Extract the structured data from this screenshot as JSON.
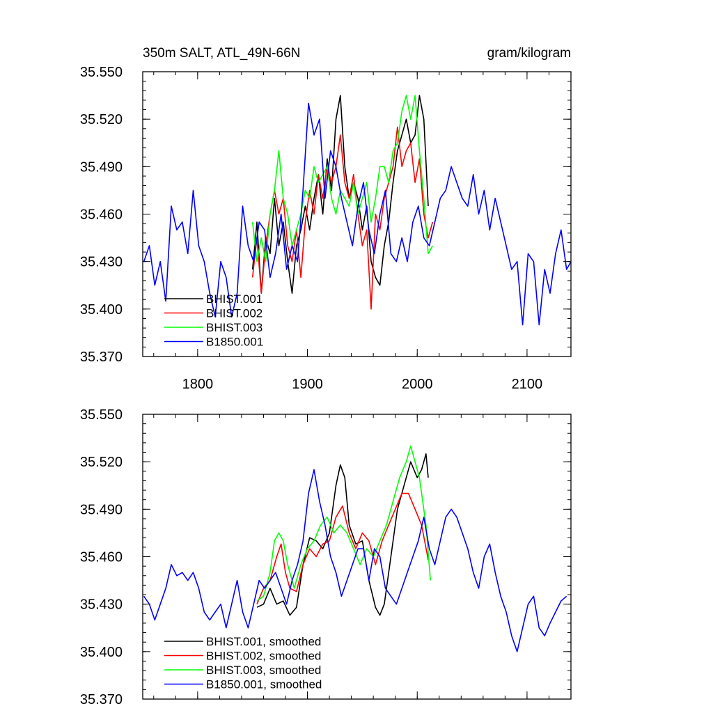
{
  "chart_data": [
    {
      "type": "line",
      "title": "350m SALT, ATL_49N-66N",
      "units": "gram/kilogram",
      "xlim": [
        1750,
        2140
      ],
      "ylim": [
        35.37,
        35.55
      ],
      "x_ticks": [
        1800,
        1900,
        2000,
        2100
      ],
      "x_tick_labels": [
        "1800",
        "1900",
        "2000",
        "2100"
      ],
      "y_ticks": [
        35.37,
        35.4,
        35.43,
        35.46,
        35.49,
        35.52,
        35.55
      ],
      "y_tick_labels": [
        "35.370",
        "35.400",
        "35.430",
        "35.460",
        "35.490",
        "35.520",
        "35.550"
      ],
      "legend_position": "bottom-left",
      "series": [
        {
          "name": "BHIST.001",
          "color": "#000000",
          "x": [
            1850,
            1854,
            1858,
            1862,
            1866,
            1870,
            1874,
            1878,
            1882,
            1886,
            1890,
            1894,
            1898,
            1902,
            1906,
            1910,
            1914,
            1918,
            1922,
            1926,
            1930,
            1934,
            1938,
            1942,
            1946,
            1950,
            1954,
            1958,
            1962,
            1966,
            1970,
            1974,
            1978,
            1982,
            1986,
            1990,
            1994,
            1998,
            2002,
            2006,
            2010
          ],
          "values": [
            35.425,
            35.455,
            35.41,
            35.445,
            35.435,
            35.47,
            35.44,
            35.455,
            35.43,
            35.41,
            35.44,
            35.45,
            35.465,
            35.45,
            35.47,
            35.485,
            35.46,
            35.495,
            35.475,
            35.52,
            35.535,
            35.49,
            35.47,
            35.48,
            35.47,
            35.45,
            35.465,
            35.43,
            35.42,
            35.415,
            35.44,
            35.455,
            35.48,
            35.5,
            35.51,
            35.52,
            35.505,
            35.51,
            35.535,
            35.52,
            35.465
          ]
        },
        {
          "name": "BHIST.002",
          "color": "#ff0000",
          "x": [
            1850,
            1854,
            1858,
            1862,
            1866,
            1870,
            1874,
            1878,
            1882,
            1886,
            1890,
            1894,
            1898,
            1902,
            1906,
            1910,
            1914,
            1918,
            1922,
            1926,
            1930,
            1934,
            1938,
            1942,
            1946,
            1950,
            1954,
            1958,
            1962,
            1966,
            1970,
            1974,
            1978,
            1982,
            1986,
            1990,
            1994,
            1998,
            2002,
            2006,
            2010,
            2014
          ],
          "values": [
            35.42,
            35.445,
            35.41,
            35.44,
            35.46,
            35.475,
            35.46,
            35.47,
            35.44,
            35.43,
            35.45,
            35.42,
            35.455,
            35.475,
            35.46,
            35.485,
            35.47,
            35.49,
            35.48,
            35.49,
            35.51,
            35.48,
            35.47,
            35.485,
            35.46,
            35.44,
            35.45,
            35.4,
            35.46,
            35.45,
            35.47,
            35.48,
            35.49,
            35.515,
            35.49,
            35.5,
            35.505,
            35.48,
            35.495,
            35.46,
            35.445,
            35.455
          ]
        },
        {
          "name": "BHIST.003",
          "color": "#00ff00",
          "x": [
            1850,
            1854,
            1858,
            1862,
            1866,
            1870,
            1874,
            1878,
            1882,
            1886,
            1890,
            1894,
            1898,
            1902,
            1906,
            1910,
            1914,
            1918,
            1922,
            1926,
            1930,
            1934,
            1938,
            1942,
            1946,
            1950,
            1954,
            1958,
            1962,
            1966,
            1970,
            1974,
            1978,
            1982,
            1986,
            1990,
            1994,
            1998,
            2002,
            2006,
            2010,
            2014
          ],
          "values": [
            35.455,
            35.43,
            35.445,
            35.43,
            35.46,
            35.475,
            35.5,
            35.47,
            35.46,
            35.44,
            35.45,
            35.46,
            35.475,
            35.47,
            35.49,
            35.48,
            35.485,
            35.49,
            35.47,
            35.46,
            35.475,
            35.47,
            35.465,
            35.48,
            35.46,
            35.47,
            35.48,
            35.455,
            35.47,
            35.49,
            35.49,
            35.48,
            35.5,
            35.505,
            35.525,
            35.535,
            35.52,
            35.535,
            35.5,
            35.47,
            35.435,
            35.44
          ]
        },
        {
          "name": "B1850.001",
          "color": "#0000ff",
          "x": [
            1751,
            1756,
            1761,
            1766,
            1771,
            1776,
            1781,
            1786,
            1791,
            1796,
            1801,
            1806,
            1811,
            1816,
            1821,
            1826,
            1831,
            1836,
            1841,
            1846,
            1851,
            1856,
            1861,
            1866,
            1871,
            1876,
            1881,
            1886,
            1891,
            1896,
            1901,
            1906,
            1911,
            1916,
            1921,
            1926,
            1931,
            1936,
            1941,
            1946,
            1951,
            1956,
            1961,
            1966,
            1971,
            1976,
            1981,
            1986,
            1991,
            1996,
            2001,
            2006,
            2011,
            2016,
            2021,
            2026,
            2031,
            2036,
            2041,
            2046,
            2051,
            2056,
            2061,
            2066,
            2071,
            2076,
            2081,
            2086,
            2091,
            2096,
            2101,
            2106,
            2111,
            2116,
            2121,
            2126,
            2131,
            2136,
            2140
          ],
          "values": [
            35.43,
            35.44,
            35.415,
            35.43,
            35.405,
            35.465,
            35.45,
            35.455,
            35.435,
            35.475,
            35.44,
            35.43,
            35.41,
            35.395,
            35.43,
            35.42,
            35.395,
            35.41,
            35.465,
            35.44,
            35.43,
            35.455,
            35.45,
            35.42,
            35.435,
            35.46,
            35.425,
            35.44,
            35.43,
            35.475,
            35.53,
            35.51,
            35.52,
            35.47,
            35.5,
            35.49,
            35.47,
            35.455,
            35.44,
            35.465,
            35.48,
            35.45,
            35.435,
            35.46,
            35.475,
            35.435,
            35.43,
            35.445,
            35.43,
            35.455,
            35.465,
            35.445,
            35.44,
            35.455,
            35.47,
            35.475,
            35.49,
            35.48,
            35.47,
            35.465,
            35.485,
            35.46,
            35.475,
            35.45,
            35.47,
            35.455,
            35.44,
            35.425,
            35.43,
            35.39,
            35.435,
            35.43,
            35.39,
            35.425,
            35.41,
            35.435,
            35.45,
            35.425,
            35.43
          ]
        }
      ]
    },
    {
      "type": "line",
      "xlim": [
        1750,
        2140
      ],
      "ylim": [
        35.37,
        35.55
      ],
      "x_ticks": [
        1800,
        1900,
        2000,
        2100
      ],
      "y_ticks": [
        35.37,
        35.4,
        35.43,
        35.46,
        35.49,
        35.52,
        35.55
      ],
      "y_tick_labels": [
        "35.370",
        "35.400",
        "35.430",
        "35.460",
        "35.490",
        "35.520",
        "35.550"
      ],
      "legend_position": "bottom-left",
      "series": [
        {
          "name": "BHIST.001, smoothed",
          "color": "#000000",
          "x": [
            1854,
            1860,
            1866,
            1872,
            1878,
            1884,
            1890,
            1896,
            1902,
            1908,
            1914,
            1920,
            1926,
            1930,
            1934,
            1938,
            1944,
            1950,
            1956,
            1962,
            1966,
            1970,
            1976,
            1982,
            1988,
            1994,
            2000,
            2004,
            2008,
            2010
          ],
          "values": [
            35.428,
            35.43,
            35.44,
            35.43,
            35.432,
            35.423,
            35.428,
            35.455,
            35.472,
            35.47,
            35.465,
            35.475,
            35.505,
            35.518,
            35.51,
            35.48,
            35.468,
            35.47,
            35.445,
            35.428,
            35.423,
            35.43,
            35.46,
            35.49,
            35.505,
            35.52,
            35.51,
            35.515,
            35.525,
            35.51
          ]
        },
        {
          "name": "BHIST.002, smoothed",
          "color": "#ff0000",
          "x": [
            1854,
            1860,
            1866,
            1872,
            1876,
            1880,
            1884,
            1890,
            1896,
            1902,
            1908,
            1914,
            1920,
            1926,
            1932,
            1938,
            1944,
            1950,
            1956,
            1962,
            1968,
            1974,
            1980,
            1986,
            1992,
            1998,
            2004,
            2010
          ],
          "values": [
            35.43,
            35.44,
            35.445,
            35.46,
            35.468,
            35.45,
            35.44,
            35.438,
            35.455,
            35.465,
            35.46,
            35.468,
            35.47,
            35.485,
            35.492,
            35.475,
            35.465,
            35.475,
            35.47,
            35.455,
            35.47,
            35.48,
            35.49,
            35.5,
            35.5,
            35.49,
            35.48,
            35.458
          ]
        },
        {
          "name": "BHIST.003, smoothed",
          "color": "#00ff00",
          "x": [
            1854,
            1860,
            1866,
            1870,
            1874,
            1878,
            1882,
            1888,
            1894,
            1900,
            1906,
            1912,
            1918,
            1924,
            1930,
            1936,
            1942,
            1948,
            1954,
            1960,
            1966,
            1972,
            1978,
            1984,
            1990,
            1994,
            1998,
            2002,
            2008,
            2012
          ],
          "values": [
            35.432,
            35.435,
            35.45,
            35.47,
            35.475,
            35.47,
            35.455,
            35.44,
            35.455,
            35.465,
            35.47,
            35.48,
            35.485,
            35.475,
            35.48,
            35.475,
            35.465,
            35.455,
            35.465,
            35.46,
            35.47,
            35.48,
            35.495,
            35.51,
            35.52,
            35.53,
            35.52,
            35.51,
            35.48,
            35.445
          ]
        },
        {
          "name": "B1850.001, smoothed",
          "color": "#0000ff",
          "x": [
            1751,
            1756,
            1761,
            1766,
            1771,
            1776,
            1781,
            1786,
            1791,
            1796,
            1801,
            1806,
            1811,
            1816,
            1821,
            1826,
            1831,
            1836,
            1841,
            1846,
            1851,
            1856,
            1861,
            1866,
            1871,
            1876,
            1881,
            1886,
            1891,
            1896,
            1901,
            1906,
            1911,
            1916,
            1921,
            1926,
            1931,
            1936,
            1941,
            1946,
            1951,
            1956,
            1961,
            1966,
            1971,
            1976,
            1981,
            1986,
            1991,
            1996,
            2001,
            2006,
            2011,
            2016,
            2021,
            2026,
            2031,
            2036,
            2041,
            2046,
            2051,
            2056,
            2061,
            2066,
            2071,
            2076,
            2081,
            2086,
            2091,
            2096,
            2101,
            2106,
            2111,
            2116,
            2121,
            2126,
            2131,
            2136
          ],
          "values": [
            35.435,
            35.43,
            35.42,
            35.43,
            35.44,
            35.455,
            35.448,
            35.45,
            35.445,
            35.45,
            35.44,
            35.425,
            35.42,
            35.425,
            35.43,
            35.415,
            35.43,
            35.445,
            35.425,
            35.415,
            35.43,
            35.445,
            35.44,
            35.445,
            35.45,
            35.44,
            35.43,
            35.445,
            35.455,
            35.47,
            35.5,
            35.515,
            35.495,
            35.48,
            35.46,
            35.45,
            35.435,
            35.445,
            35.455,
            35.465,
            35.465,
            35.445,
            35.465,
            35.46,
            35.44,
            35.435,
            35.43,
            35.44,
            35.45,
            35.46,
            35.47,
            35.485,
            35.465,
            35.455,
            35.47,
            35.485,
            35.49,
            35.485,
            35.475,
            35.465,
            35.45,
            35.44,
            35.46,
            35.468,
            35.45,
            35.435,
            35.425,
            35.41,
            35.4,
            35.415,
            35.43,
            35.435,
            35.415,
            35.41,
            35.418,
            35.425,
            35.432,
            35.435
          ]
        }
      ]
    }
  ]
}
